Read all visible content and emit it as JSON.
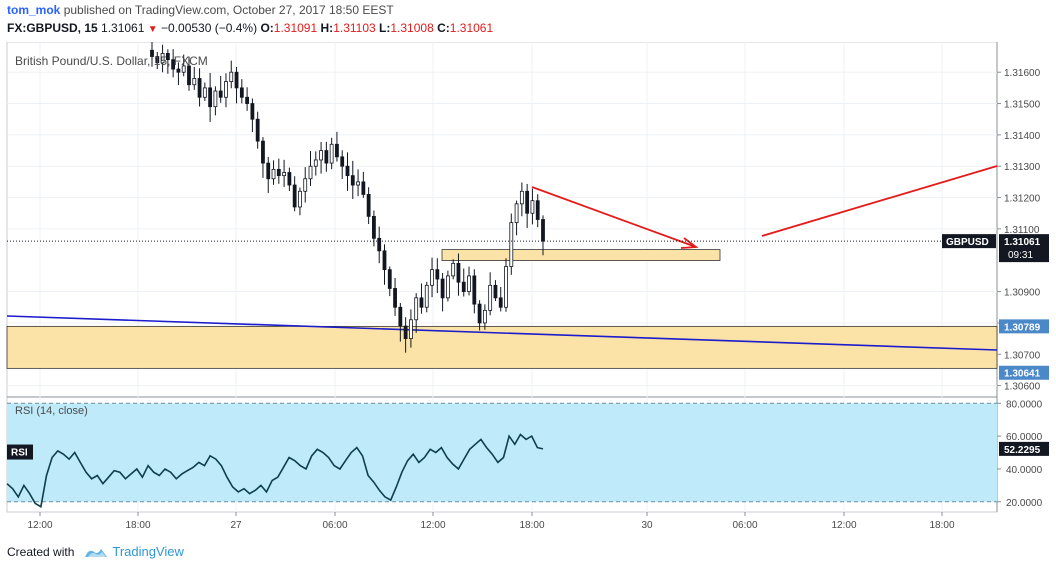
{
  "header": {
    "author": "tom_mok",
    "published_text": "published on TradingView.com, October 27, 2017 18:50 EEST",
    "symbol": "FX:GBPUSD, 15",
    "last_price": "1.31061",
    "change_arrow": "▼",
    "change": "−0.00530 (−0.4%)",
    "o_label": "O:",
    "o_value": "1.31091",
    "h_label": "H:",
    "h_value": "1.31103",
    "l_label": "L:",
    "l_value": "1.31008",
    "c_label": "C:",
    "c_value": "1.31061"
  },
  "chart_title": "British Pound/U.S. Dollar, 15, FXCM",
  "price_badge": {
    "label": "GBPUSD",
    "value": "1.31061",
    "countdown": "09:31",
    "color": "#131722"
  },
  "level_badges": [
    {
      "value": "1.30789",
      "color": "#4a88c8"
    },
    {
      "value": "1.30641",
      "color": "#4a88c8"
    }
  ],
  "rsi": {
    "label": "RSI (14, close)",
    "badge": "RSI",
    "value": "52.2295",
    "ticks": [
      "80.0000",
      "60.0000",
      "40.0000",
      "20.0000"
    ]
  },
  "footer": {
    "created_with": "Created with",
    "brand": "TradingView"
  },
  "colors": {
    "zone_fill": "#fbe3a7",
    "zone_stroke": "#333333",
    "trend_line": "#1c1ccc",
    "arrow": "#e31b1b",
    "rsi_fill": "#bfeafa",
    "rsi_line": "#0e3f4c",
    "candle": "#131722"
  },
  "chart_data": [
    {
      "type": "candlestick",
      "title": "British Pound/U.S. Dollar, 15, FXCM",
      "symbol": "FX:GBPUSD",
      "interval": "15",
      "x_ticks": [
        "12:00",
        "18:00",
        "27",
        "06:00",
        "12:00",
        "18:00",
        "30",
        "06:00",
        "12:00",
        "18:00"
      ],
      "y_ticks": [
        "1.31600",
        "1.31500",
        "1.31400",
        "1.31300",
        "1.31200",
        "1.31100",
        "1.30900",
        "1.30800",
        "1.30700",
        "1.30600"
      ],
      "ylim": [
        1.3057,
        1.3169
      ],
      "close_path": [
        1.3165,
        1.3163,
        1.3166,
        1.3164,
        1.3161,
        1.316,
        1.3162,
        1.3156,
        1.3158,
        1.3152,
        1.3155,
        1.3149,
        1.3154,
        1.3152,
        1.3157,
        1.316,
        1.3155,
        1.3152,
        1.315,
        1.3145,
        1.3138,
        1.3131,
        1.3126,
        1.3129,
        1.3127,
        1.3128,
        1.3124,
        1.3117,
        1.3122,
        1.3126,
        1.313,
        1.3132,
        1.3135,
        1.3131,
        1.3137,
        1.3133,
        1.313,
        1.3127,
        1.3124,
        1.3125,
        1.3121,
        1.3114,
        1.3107,
        1.3103,
        1.3097,
        1.3091,
        1.3085,
        1.3079,
        1.3075,
        1.3081,
        1.3088,
        1.3085,
        1.3092,
        1.3097,
        1.3094,
        1.3088,
        1.3095,
        1.3099,
        1.3093,
        1.309,
        1.3095,
        1.3086,
        1.308,
        1.3084,
        1.3092,
        1.3088,
        1.3085,
        1.3098,
        1.3112,
        1.3118,
        1.3122,
        1.3115,
        1.3119,
        1.3113,
        1.3108
      ],
      "last_close": 1.31061,
      "support_zone": [
        1.30655,
        1.30789
      ],
      "small_zone": [
        1.30999,
        1.31034
      ],
      "trend_line": {
        "from": [
          "27 Oct 02:45",
          1.3082
        ],
        "to": [
          "30 Oct 21:30",
          1.3072
        ]
      },
      "arrows": [
        {
          "from": [
            "27 Oct 18:00",
            1.3122
          ],
          "to": [
            "30 Oct 04:30",
            1.3104
          ]
        },
        {
          "from": [
            "30 Oct 07:00",
            1.3106
          ],
          "to": [
            "30 Oct 21:30",
            1.3129
          ]
        }
      ]
    },
    {
      "type": "line",
      "title": "RSI (14, close)",
      "y_ticks": [
        "80.0000",
        "60.0000",
        "40.0000",
        "20.0000"
      ],
      "ylim": [
        15,
        82
      ],
      "band": [
        20,
        80
      ],
      "values": [
        31,
        28,
        23,
        30,
        25,
        19,
        17,
        36,
        47,
        51,
        49,
        46,
        50,
        44,
        38,
        34,
        36,
        31,
        35,
        39,
        38,
        34,
        37,
        40,
        35,
        42,
        38,
        36,
        40,
        38,
        34,
        37,
        39,
        41,
        44,
        42,
        48,
        46,
        42,
        35,
        29,
        26,
        28,
        25,
        27,
        30,
        26,
        33,
        35,
        41,
        47,
        45,
        42,
        40,
        48,
        52,
        50,
        47,
        42,
        40,
        45,
        50,
        53,
        48,
        36,
        32,
        27,
        23,
        21,
        29,
        38,
        45,
        49,
        44,
        47,
        52,
        50,
        53,
        47,
        43,
        40,
        46,
        52,
        55,
        58,
        53,
        49,
        44,
        47,
        60,
        55,
        61,
        58,
        60,
        53,
        52.2295
      ]
    }
  ]
}
